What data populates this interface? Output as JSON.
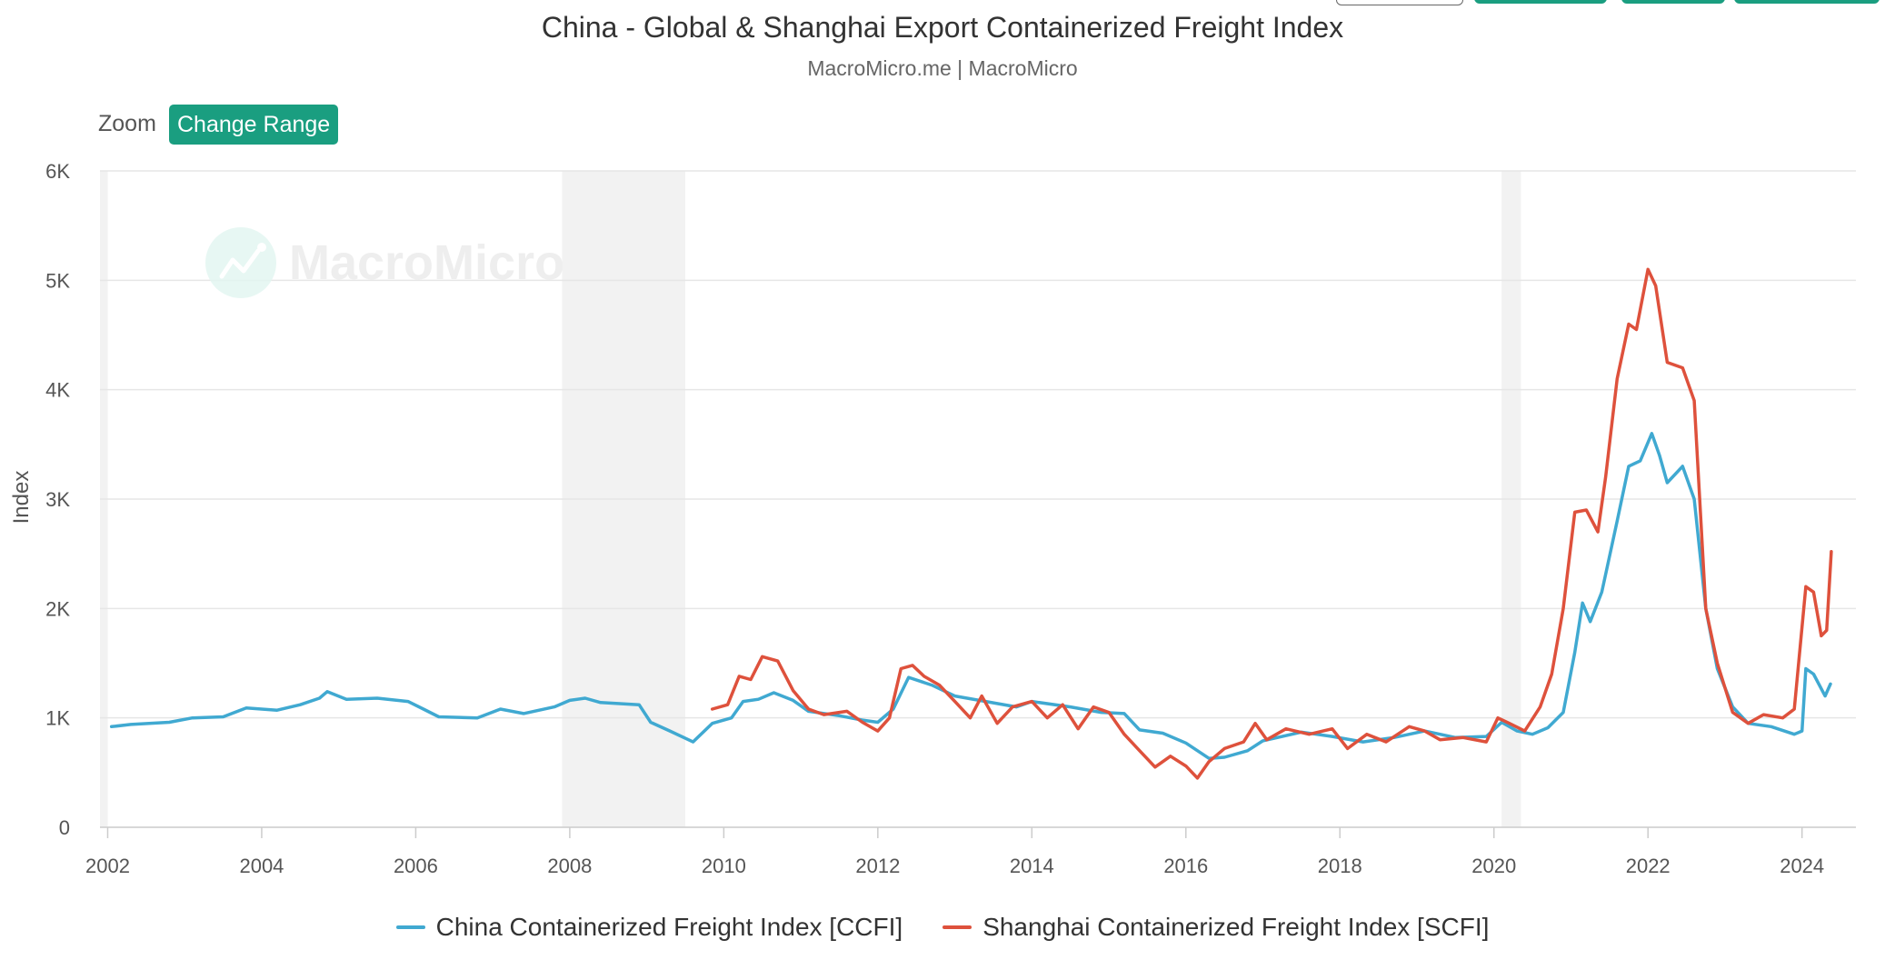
{
  "header": {
    "title": "China - Global & Shanghai Export Containerized Freight Index",
    "subtitle": "MacroMicro.me | MacroMicro"
  },
  "zoom": {
    "label": "Zoom",
    "button_label": "Change Range"
  },
  "watermark": {
    "text": "MacroMicro",
    "icon": "macromicro-logo-icon"
  },
  "colors": {
    "ccfi": "#40a9d1",
    "scfi": "#de513c",
    "accent": "#1a9e80",
    "shade": "#f2f2f2",
    "grid": "#e6e6e6"
  },
  "chart_data": {
    "type": "line",
    "title": "China - Global & Shanghai Export Containerized Freight Index",
    "ylabel": "Index",
    "xlabel": "",
    "xlim": [
      2001.9,
      2024.7
    ],
    "ylim": [
      0,
      6000
    ],
    "y_ticks": [
      {
        "value": 0,
        "label": "0"
      },
      {
        "value": 1000,
        "label": "1K"
      },
      {
        "value": 2000,
        "label": "2K"
      },
      {
        "value": 3000,
        "label": "3K"
      },
      {
        "value": 4000,
        "label": "4K"
      },
      {
        "value": 5000,
        "label": "5K"
      },
      {
        "value": 6000,
        "label": "6K"
      }
    ],
    "x_ticks": [
      {
        "value": 2002,
        "label": "2002"
      },
      {
        "value": 2004,
        "label": "2004"
      },
      {
        "value": 2006,
        "label": "2006"
      },
      {
        "value": 2008,
        "label": "2008"
      },
      {
        "value": 2010,
        "label": "2010"
      },
      {
        "value": 2012,
        "label": "2012"
      },
      {
        "value": 2014,
        "label": "2014"
      },
      {
        "value": 2016,
        "label": "2016"
      },
      {
        "value": 2018,
        "label": "2018"
      },
      {
        "value": 2020,
        "label": "2020"
      },
      {
        "value": 2022,
        "label": "2022"
      },
      {
        "value": 2024,
        "label": "2024"
      }
    ],
    "shaded_periods": [
      [
        2001.9,
        2002.0
      ],
      [
        2007.9,
        2009.5
      ],
      [
        2020.1,
        2020.35
      ]
    ],
    "grid": true,
    "legend_position": "bottom",
    "series": [
      {
        "name": "China Containerized Freight Index [CCFI]",
        "color": "#40a9d1",
        "points": [
          [
            2002.05,
            920
          ],
          [
            2002.3,
            940
          ],
          [
            2002.8,
            960
          ],
          [
            2003.1,
            1000
          ],
          [
            2003.5,
            1010
          ],
          [
            2003.8,
            1090
          ],
          [
            2004.2,
            1070
          ],
          [
            2004.5,
            1120
          ],
          [
            2004.75,
            1180
          ],
          [
            2004.85,
            1240
          ],
          [
            2005.1,
            1170
          ],
          [
            2005.5,
            1180
          ],
          [
            2005.9,
            1150
          ],
          [
            2006.1,
            1080
          ],
          [
            2006.3,
            1010
          ],
          [
            2006.8,
            1000
          ],
          [
            2007.1,
            1080
          ],
          [
            2007.4,
            1040
          ],
          [
            2007.8,
            1100
          ],
          [
            2008.0,
            1160
          ],
          [
            2008.2,
            1180
          ],
          [
            2008.4,
            1140
          ],
          [
            2008.9,
            1120
          ],
          [
            2009.05,
            960
          ],
          [
            2009.3,
            880
          ],
          [
            2009.6,
            780
          ],
          [
            2009.85,
            950
          ],
          [
            2010.1,
            1000
          ],
          [
            2010.25,
            1150
          ],
          [
            2010.45,
            1170
          ],
          [
            2010.65,
            1230
          ],
          [
            2010.9,
            1160
          ],
          [
            2011.1,
            1060
          ],
          [
            2011.5,
            1020
          ],
          [
            2011.8,
            980
          ],
          [
            2012.0,
            960
          ],
          [
            2012.2,
            1080
          ],
          [
            2012.4,
            1370
          ],
          [
            2012.7,
            1300
          ],
          [
            2013.0,
            1200
          ],
          [
            2013.4,
            1150
          ],
          [
            2013.8,
            1100
          ],
          [
            2014.0,
            1150
          ],
          [
            2014.5,
            1100
          ],
          [
            2014.9,
            1050
          ],
          [
            2015.2,
            1040
          ],
          [
            2015.4,
            890
          ],
          [
            2015.7,
            860
          ],
          [
            2016.0,
            770
          ],
          [
            2016.3,
            630
          ],
          [
            2016.5,
            640
          ],
          [
            2016.8,
            700
          ],
          [
            2017.0,
            790
          ],
          [
            2017.5,
            870
          ],
          [
            2017.9,
            830
          ],
          [
            2018.3,
            780
          ],
          [
            2018.7,
            820
          ],
          [
            2019.1,
            880
          ],
          [
            2019.5,
            820
          ],
          [
            2019.9,
            830
          ],
          [
            2020.1,
            960
          ],
          [
            2020.3,
            880
          ],
          [
            2020.5,
            850
          ],
          [
            2020.7,
            910
          ],
          [
            2020.9,
            1050
          ],
          [
            2021.05,
            1600
          ],
          [
            2021.15,
            2050
          ],
          [
            2021.25,
            1880
          ],
          [
            2021.4,
            2150
          ],
          [
            2021.6,
            2800
          ],
          [
            2021.75,
            3300
          ],
          [
            2021.9,
            3350
          ],
          [
            2022.05,
            3600
          ],
          [
            2022.15,
            3400
          ],
          [
            2022.25,
            3150
          ],
          [
            2022.45,
            3300
          ],
          [
            2022.6,
            3000
          ],
          [
            2022.75,
            2000
          ],
          [
            2022.9,
            1450
          ],
          [
            2023.1,
            1100
          ],
          [
            2023.3,
            950
          ],
          [
            2023.6,
            920
          ],
          [
            2023.9,
            850
          ],
          [
            2024.0,
            880
          ],
          [
            2024.05,
            1450
          ],
          [
            2024.15,
            1400
          ],
          [
            2024.3,
            1200
          ],
          [
            2024.37,
            1310
          ]
        ]
      },
      {
        "name": "Shanghai Containerized Freight Index [SCFI]",
        "color": "#de513c",
        "points": [
          [
            2009.85,
            1080
          ],
          [
            2010.05,
            1120
          ],
          [
            2010.2,
            1380
          ],
          [
            2010.35,
            1350
          ],
          [
            2010.5,
            1560
          ],
          [
            2010.7,
            1520
          ],
          [
            2010.9,
            1250
          ],
          [
            2011.1,
            1080
          ],
          [
            2011.3,
            1030
          ],
          [
            2011.6,
            1060
          ],
          [
            2011.8,
            960
          ],
          [
            2012.0,
            880
          ],
          [
            2012.15,
            1000
          ],
          [
            2012.3,
            1450
          ],
          [
            2012.45,
            1480
          ],
          [
            2012.6,
            1380
          ],
          [
            2012.8,
            1300
          ],
          [
            2013.0,
            1150
          ],
          [
            2013.2,
            1000
          ],
          [
            2013.35,
            1200
          ],
          [
            2013.55,
            950
          ],
          [
            2013.75,
            1100
          ],
          [
            2014.0,
            1150
          ],
          [
            2014.2,
            1000
          ],
          [
            2014.4,
            1120
          ],
          [
            2014.6,
            900
          ],
          [
            2014.8,
            1100
          ],
          [
            2015.0,
            1050
          ],
          [
            2015.2,
            850
          ],
          [
            2015.4,
            700
          ],
          [
            2015.6,
            550
          ],
          [
            2015.8,
            650
          ],
          [
            2016.0,
            560
          ],
          [
            2016.15,
            450
          ],
          [
            2016.3,
            600
          ],
          [
            2016.5,
            720
          ],
          [
            2016.75,
            780
          ],
          [
            2016.9,
            950
          ],
          [
            2017.05,
            800
          ],
          [
            2017.3,
            900
          ],
          [
            2017.6,
            850
          ],
          [
            2017.9,
            900
          ],
          [
            2018.1,
            720
          ],
          [
            2018.35,
            850
          ],
          [
            2018.6,
            780
          ],
          [
            2018.9,
            920
          ],
          [
            2019.1,
            880
          ],
          [
            2019.3,
            800
          ],
          [
            2019.6,
            820
          ],
          [
            2019.9,
            780
          ],
          [
            2020.05,
            1000
          ],
          [
            2020.2,
            950
          ],
          [
            2020.4,
            880
          ],
          [
            2020.6,
            1100
          ],
          [
            2020.75,
            1400
          ],
          [
            2020.9,
            2000
          ],
          [
            2021.05,
            2880
          ],
          [
            2021.2,
            2900
          ],
          [
            2021.35,
            2700
          ],
          [
            2021.45,
            3200
          ],
          [
            2021.6,
            4100
          ],
          [
            2021.75,
            4600
          ],
          [
            2021.85,
            4550
          ],
          [
            2022.0,
            5100
          ],
          [
            2022.1,
            4950
          ],
          [
            2022.25,
            4250
          ],
          [
            2022.45,
            4200
          ],
          [
            2022.6,
            3900
          ],
          [
            2022.75,
            2000
          ],
          [
            2022.9,
            1500
          ],
          [
            2023.1,
            1050
          ],
          [
            2023.3,
            950
          ],
          [
            2023.5,
            1030
          ],
          [
            2023.75,
            1000
          ],
          [
            2023.9,
            1080
          ],
          [
            2024.05,
            2200
          ],
          [
            2024.15,
            2150
          ],
          [
            2024.25,
            1750
          ],
          [
            2024.32,
            1800
          ],
          [
            2024.38,
            2520
          ]
        ]
      }
    ]
  }
}
